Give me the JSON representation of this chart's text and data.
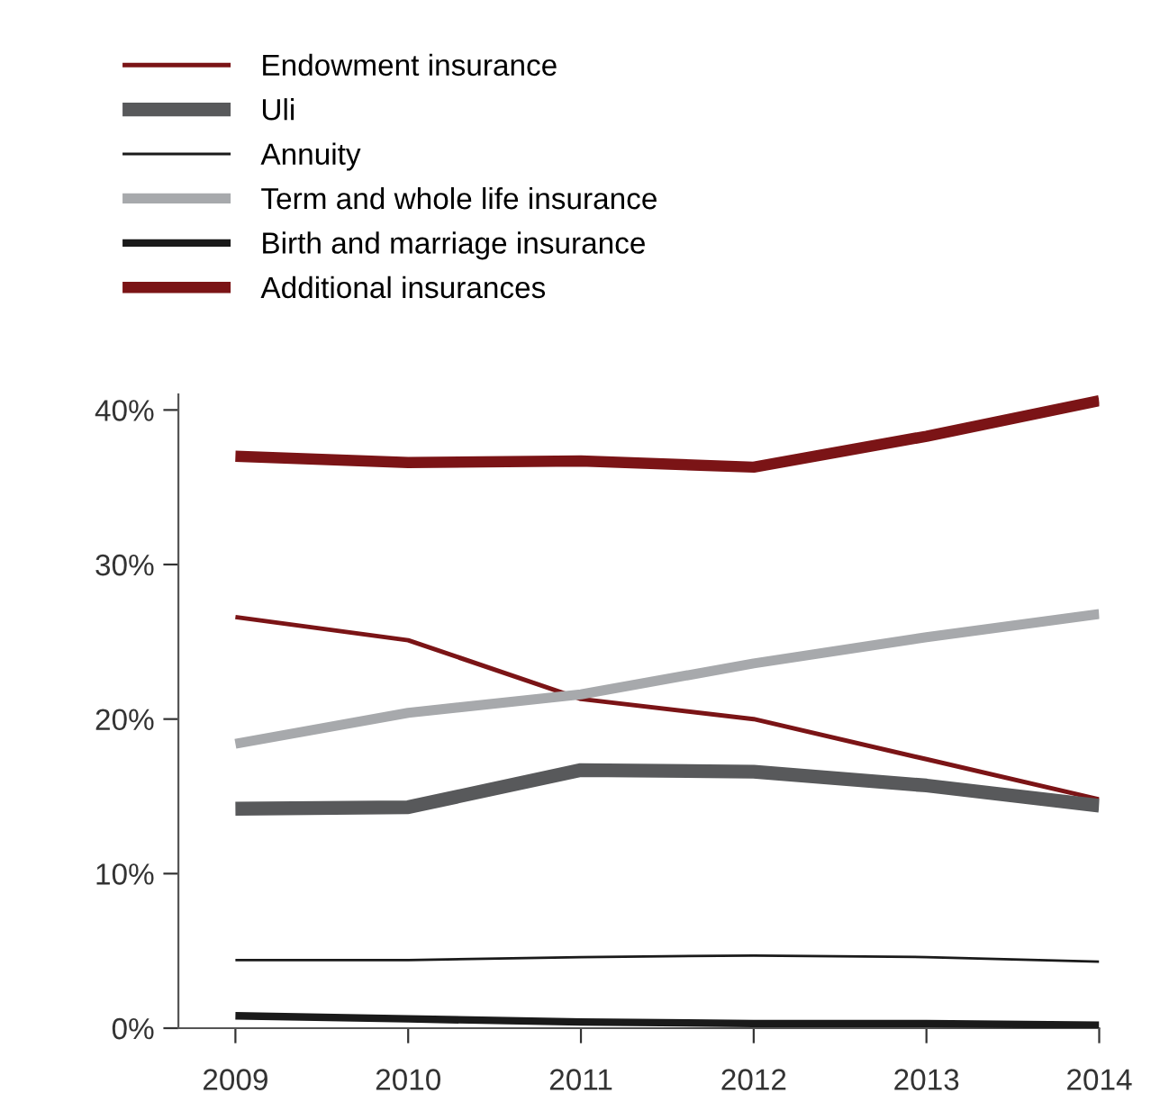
{
  "chart_data": {
    "type": "line",
    "x": [
      2009,
      2010,
      2011,
      2012,
      2013,
      2014
    ],
    "xlim": [
      2008.67,
      2014
    ],
    "xticks": [
      2009,
      2010,
      2011,
      2012,
      2013,
      2014
    ],
    "ylim": [
      0,
      41
    ],
    "yticks": [
      {
        "value": 0,
        "label": "0%"
      },
      {
        "value": 10,
        "label": "10%"
      },
      {
        "value": 20,
        "label": "20%"
      },
      {
        "value": 30,
        "label": "30%"
      },
      {
        "value": 40,
        "label": "40%"
      }
    ],
    "grid": false,
    "legend": "top left",
    "marker": "none",
    "line_style": "solid",
    "series": [
      {
        "name": "Endowment insurance",
        "color": "#7b1416",
        "values": [
          26.6,
          25.1,
          21.3,
          20.0,
          17.4,
          14.8
        ]
      },
      {
        "name": "Uli",
        "color": "#58595b",
        "values": [
          14.2,
          14.3,
          16.7,
          16.6,
          15.7,
          14.4
        ]
      },
      {
        "name": "Annuity",
        "color": "#1a1a1a",
        "values": [
          4.4,
          4.4,
          4.6,
          4.7,
          4.6,
          4.3
        ]
      },
      {
        "name": "Term and whole life insurance",
        "color": "#a7a9ac",
        "values": [
          18.4,
          20.4,
          21.6,
          23.6,
          25.3,
          26.8
        ]
      },
      {
        "name": "Birth and marriage insurance",
        "color": "#1a1a1a",
        "values": [
          0.8,
          0.6,
          0.4,
          0.3,
          0.3,
          0.2
        ]
      },
      {
        "name": "Additional insurances",
        "color": "#7b1416",
        "values": [
          37.0,
          36.6,
          36.7,
          36.3,
          38.3,
          40.6
        ]
      }
    ]
  }
}
